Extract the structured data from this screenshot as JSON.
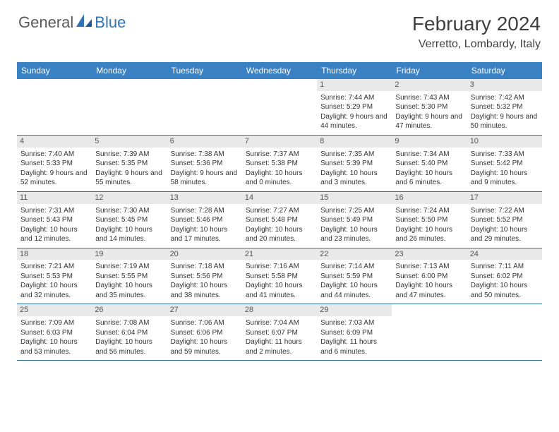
{
  "logo": {
    "general": "General",
    "blue": "Blue"
  },
  "title": "February 2024",
  "location": "Verretto, Lombardy, Italy",
  "colors": {
    "header_bg": "#3a81c4",
    "header_text": "#ffffff",
    "daynum_bg": "#e9e9e9",
    "border": "#2e6ca8",
    "logo_gray": "#5a5a5a",
    "logo_blue": "#2e75b6"
  },
  "dayNames": [
    "Sunday",
    "Monday",
    "Tuesday",
    "Wednesday",
    "Thursday",
    "Friday",
    "Saturday"
  ],
  "weeks": [
    [
      {
        "day": "",
        "sunrise": "",
        "sunset": "",
        "daylight": ""
      },
      {
        "day": "",
        "sunrise": "",
        "sunset": "",
        "daylight": ""
      },
      {
        "day": "",
        "sunrise": "",
        "sunset": "",
        "daylight": ""
      },
      {
        "day": "",
        "sunrise": "",
        "sunset": "",
        "daylight": ""
      },
      {
        "day": "1",
        "sunrise": "Sunrise: 7:44 AM",
        "sunset": "Sunset: 5:29 PM",
        "daylight": "Daylight: 9 hours and 44 minutes."
      },
      {
        "day": "2",
        "sunrise": "Sunrise: 7:43 AM",
        "sunset": "Sunset: 5:30 PM",
        "daylight": "Daylight: 9 hours and 47 minutes."
      },
      {
        "day": "3",
        "sunrise": "Sunrise: 7:42 AM",
        "sunset": "Sunset: 5:32 PM",
        "daylight": "Daylight: 9 hours and 50 minutes."
      }
    ],
    [
      {
        "day": "4",
        "sunrise": "Sunrise: 7:40 AM",
        "sunset": "Sunset: 5:33 PM",
        "daylight": "Daylight: 9 hours and 52 minutes."
      },
      {
        "day": "5",
        "sunrise": "Sunrise: 7:39 AM",
        "sunset": "Sunset: 5:35 PM",
        "daylight": "Daylight: 9 hours and 55 minutes."
      },
      {
        "day": "6",
        "sunrise": "Sunrise: 7:38 AM",
        "sunset": "Sunset: 5:36 PM",
        "daylight": "Daylight: 9 hours and 58 minutes."
      },
      {
        "day": "7",
        "sunrise": "Sunrise: 7:37 AM",
        "sunset": "Sunset: 5:38 PM",
        "daylight": "Daylight: 10 hours and 0 minutes."
      },
      {
        "day": "8",
        "sunrise": "Sunrise: 7:35 AM",
        "sunset": "Sunset: 5:39 PM",
        "daylight": "Daylight: 10 hours and 3 minutes."
      },
      {
        "day": "9",
        "sunrise": "Sunrise: 7:34 AM",
        "sunset": "Sunset: 5:40 PM",
        "daylight": "Daylight: 10 hours and 6 minutes."
      },
      {
        "day": "10",
        "sunrise": "Sunrise: 7:33 AM",
        "sunset": "Sunset: 5:42 PM",
        "daylight": "Daylight: 10 hours and 9 minutes."
      }
    ],
    [
      {
        "day": "11",
        "sunrise": "Sunrise: 7:31 AM",
        "sunset": "Sunset: 5:43 PM",
        "daylight": "Daylight: 10 hours and 12 minutes."
      },
      {
        "day": "12",
        "sunrise": "Sunrise: 7:30 AM",
        "sunset": "Sunset: 5:45 PM",
        "daylight": "Daylight: 10 hours and 14 minutes."
      },
      {
        "day": "13",
        "sunrise": "Sunrise: 7:28 AM",
        "sunset": "Sunset: 5:46 PM",
        "daylight": "Daylight: 10 hours and 17 minutes."
      },
      {
        "day": "14",
        "sunrise": "Sunrise: 7:27 AM",
        "sunset": "Sunset: 5:48 PM",
        "daylight": "Daylight: 10 hours and 20 minutes."
      },
      {
        "day": "15",
        "sunrise": "Sunrise: 7:25 AM",
        "sunset": "Sunset: 5:49 PM",
        "daylight": "Daylight: 10 hours and 23 minutes."
      },
      {
        "day": "16",
        "sunrise": "Sunrise: 7:24 AM",
        "sunset": "Sunset: 5:50 PM",
        "daylight": "Daylight: 10 hours and 26 minutes."
      },
      {
        "day": "17",
        "sunrise": "Sunrise: 7:22 AM",
        "sunset": "Sunset: 5:52 PM",
        "daylight": "Daylight: 10 hours and 29 minutes."
      }
    ],
    [
      {
        "day": "18",
        "sunrise": "Sunrise: 7:21 AM",
        "sunset": "Sunset: 5:53 PM",
        "daylight": "Daylight: 10 hours and 32 minutes."
      },
      {
        "day": "19",
        "sunrise": "Sunrise: 7:19 AM",
        "sunset": "Sunset: 5:55 PM",
        "daylight": "Daylight: 10 hours and 35 minutes."
      },
      {
        "day": "20",
        "sunrise": "Sunrise: 7:18 AM",
        "sunset": "Sunset: 5:56 PM",
        "daylight": "Daylight: 10 hours and 38 minutes."
      },
      {
        "day": "21",
        "sunrise": "Sunrise: 7:16 AM",
        "sunset": "Sunset: 5:58 PM",
        "daylight": "Daylight: 10 hours and 41 minutes."
      },
      {
        "day": "22",
        "sunrise": "Sunrise: 7:14 AM",
        "sunset": "Sunset: 5:59 PM",
        "daylight": "Daylight: 10 hours and 44 minutes."
      },
      {
        "day": "23",
        "sunrise": "Sunrise: 7:13 AM",
        "sunset": "Sunset: 6:00 PM",
        "daylight": "Daylight: 10 hours and 47 minutes."
      },
      {
        "day": "24",
        "sunrise": "Sunrise: 7:11 AM",
        "sunset": "Sunset: 6:02 PM",
        "daylight": "Daylight: 10 hours and 50 minutes."
      }
    ],
    [
      {
        "day": "25",
        "sunrise": "Sunrise: 7:09 AM",
        "sunset": "Sunset: 6:03 PM",
        "daylight": "Daylight: 10 hours and 53 minutes."
      },
      {
        "day": "26",
        "sunrise": "Sunrise: 7:08 AM",
        "sunset": "Sunset: 6:04 PM",
        "daylight": "Daylight: 10 hours and 56 minutes."
      },
      {
        "day": "27",
        "sunrise": "Sunrise: 7:06 AM",
        "sunset": "Sunset: 6:06 PM",
        "daylight": "Daylight: 10 hours and 59 minutes."
      },
      {
        "day": "28",
        "sunrise": "Sunrise: 7:04 AM",
        "sunset": "Sunset: 6:07 PM",
        "daylight": "Daylight: 11 hours and 2 minutes."
      },
      {
        "day": "29",
        "sunrise": "Sunrise: 7:03 AM",
        "sunset": "Sunset: 6:09 PM",
        "daylight": "Daylight: 11 hours and 6 minutes."
      },
      {
        "day": "",
        "sunrise": "",
        "sunset": "",
        "daylight": ""
      },
      {
        "day": "",
        "sunrise": "",
        "sunset": "",
        "daylight": ""
      }
    ]
  ]
}
